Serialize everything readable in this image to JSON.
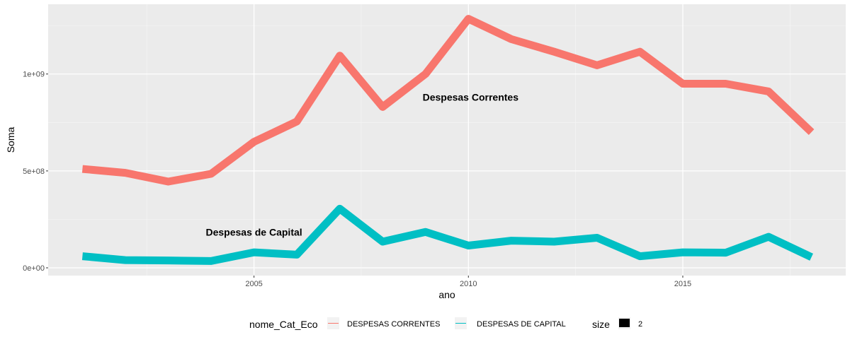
{
  "chart_data": {
    "type": "line",
    "xlabel": "ano",
    "ylabel": "Soma",
    "xlim": [
      2000.2,
      2018.8
    ],
    "ylim": [
      -40000000,
      1360000000
    ],
    "x_ticks": [
      2005,
      2010,
      2015
    ],
    "x_tick_labels": [
      "2005",
      "2010",
      "2015"
    ],
    "x_minor_ticks": [
      2002.5,
      2007.5,
      2012.5,
      2017.5
    ],
    "y_ticks": [
      0,
      500000000,
      1000000000
    ],
    "y_tick_labels": [
      "0e+00",
      "5e+08",
      "1e+09"
    ],
    "y_minor_ticks": [
      250000000,
      750000000,
      1250000000
    ],
    "grid": true,
    "background": "#ebebeb",
    "series": [
      {
        "name": "DESPESAS CORRENTES",
        "color": "#f8766d",
        "x": [
          2001,
          2002,
          2003,
          2004,
          2005,
          2006,
          2007,
          2008,
          2009,
          2010,
          2011,
          2012,
          2013,
          2014,
          2015,
          2016,
          2017,
          2018
        ],
        "values": [
          510000000,
          490000000,
          445000000,
          485000000,
          650000000,
          755000000,
          1095000000,
          830000000,
          1000000000,
          1285000000,
          1180000000,
          1115000000,
          1045000000,
          1115000000,
          950000000,
          950000000,
          910000000,
          700000000
        ]
      },
      {
        "name": "DESPESAS DE CAPITAL",
        "color": "#00bfc4",
        "x": [
          2001,
          2002,
          2003,
          2004,
          2005,
          2006,
          2007,
          2008,
          2009,
          2010,
          2011,
          2012,
          2013,
          2014,
          2015,
          2016,
          2017,
          2018
        ],
        "values": [
          60000000,
          40000000,
          38000000,
          35000000,
          80000000,
          68000000,
          305000000,
          135000000,
          185000000,
          115000000,
          140000000,
          135000000,
          155000000,
          60000000,
          80000000,
          78000000,
          160000000,
          55000000
        ]
      }
    ],
    "annotations": [
      {
        "text": "Despesas Correntes",
        "x": 2010.05,
        "y": 875000000
      },
      {
        "text": "Despesas de Capital",
        "x": 2005.0,
        "y": 180000000
      }
    ],
    "legend": {
      "placement": "bottom",
      "color_title": "nome_Cat_Eco",
      "color_labels": [
        "DESPESAS CORRENTES",
        "DESPESAS DE CAPITAL"
      ],
      "size_title": "size",
      "size_label": "2"
    }
  }
}
